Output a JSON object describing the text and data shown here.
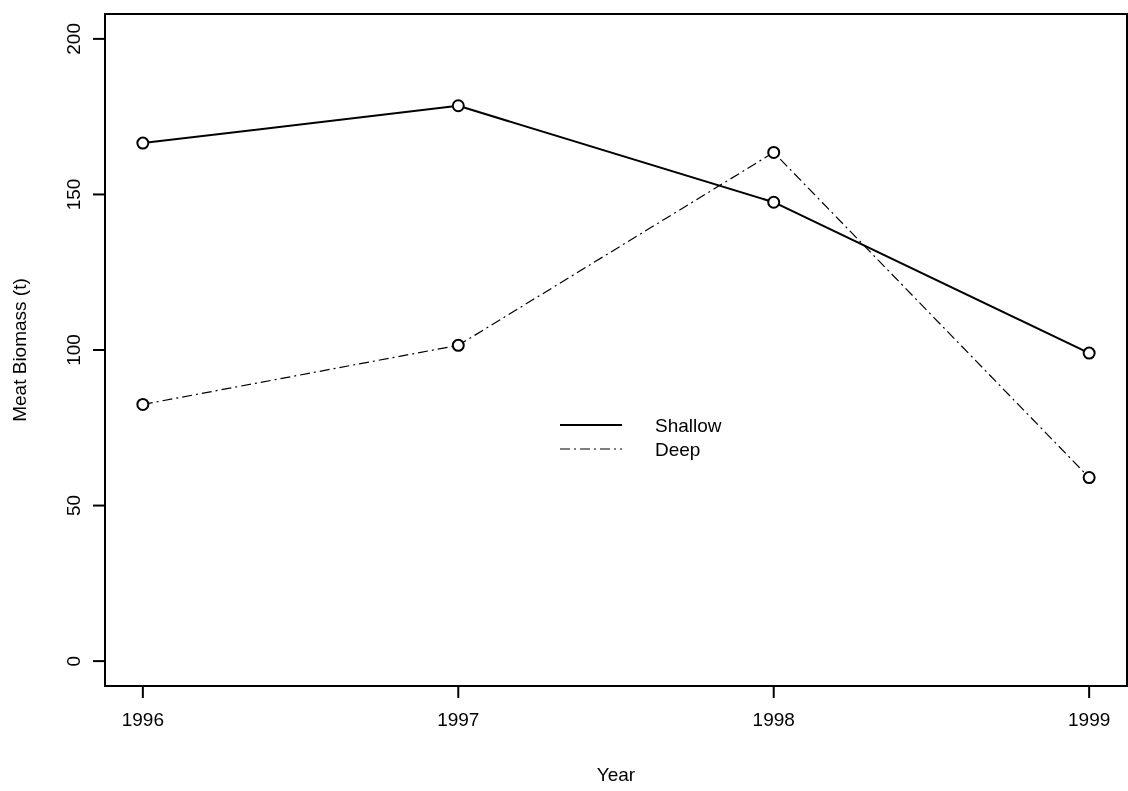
{
  "chart_data": {
    "type": "line",
    "xlabel": "Year",
    "ylabel": "Meat Biomass (t)",
    "x": [
      1996,
      1997,
      1998,
      1999
    ],
    "series": [
      {
        "name": "Shallow",
        "color": "#000000",
        "values": [
          166.5,
          178.5,
          147.5,
          99
        ],
        "line_style": "solid"
      },
      {
        "name": "Deep",
        "color": "#000000",
        "values": [
          82.5,
          101.5,
          163.5,
          59
        ],
        "line_style": "dashed"
      }
    ],
    "xlim": [
      1995.88,
      1999.12
    ],
    "xticks": [
      1996,
      1997,
      1998,
      1999
    ],
    "ylim": [
      -8,
      208
    ],
    "yticks": [
      0,
      50,
      100,
      150,
      200
    ],
    "grid": false,
    "legend": "center",
    "marker": "circle"
  }
}
